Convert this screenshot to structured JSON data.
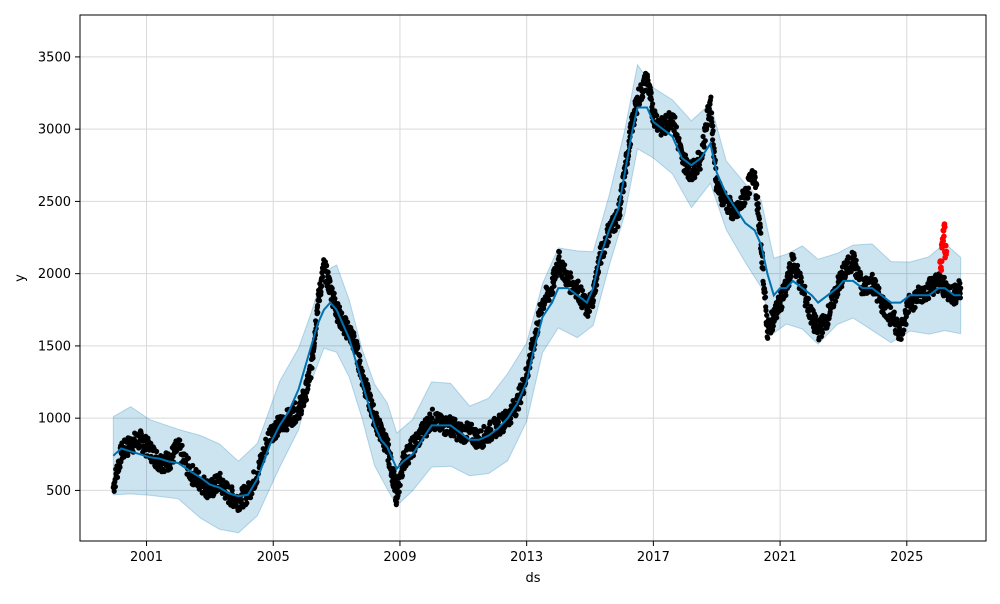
{
  "chart_data": {
    "type": "scatter",
    "title": "",
    "xlabel": "ds",
    "ylabel": "y",
    "xlim": [
      1998.9,
      2027.5
    ],
    "ylim": [
      150,
      3790
    ],
    "x_ticks": [
      2001,
      2005,
      2009,
      2013,
      2017,
      2021,
      2025
    ],
    "x_tick_labels": [
      "2001",
      "2005",
      "2009",
      "2013",
      "2017",
      "2021",
      "2025"
    ],
    "y_ticks": [
      500,
      1000,
      1500,
      2000,
      2500,
      3000,
      3500
    ],
    "y_tick_labels": [
      "500",
      "1000",
      "1500",
      "2000",
      "2500",
      "3000",
      "3500"
    ],
    "grid": true,
    "colors": {
      "observed": "#000000",
      "forecast_line": "#0072B2",
      "uncertainty_band": "#0072B2",
      "recent_points": "#ff0000",
      "grid": "#d9d9d9"
    },
    "series": [
      {
        "role": "observed",
        "x": [
          1999.95,
          2000.2,
          2000.5,
          2000.8,
          2001.1,
          2001.4,
          2001.7,
          2002.0,
          2002.4,
          2002.7,
          2003.0,
          2003.3,
          2003.6,
          2003.9,
          2004.2,
          2004.5,
          2004.9,
          2005.2,
          2005.5,
          2005.8,
          2006.0,
          2006.2,
          2006.4,
          2006.6,
          2006.8,
          2007.0,
          2007.2,
          2007.4,
          2007.6,
          2007.8,
          2008.0,
          2008.2,
          2008.4,
          2008.6,
          2008.8,
          2008.9,
          2009.1,
          2009.4,
          2009.7,
          2010.0,
          2010.3,
          2010.6,
          2010.9,
          2011.2,
          2011.5,
          2011.8,
          2012.1,
          2012.4,
          2012.7,
          2013.0,
          2013.2,
          2013.5,
          2013.8,
          2014.0,
          2014.3,
          2014.6,
          2014.9,
          2015.1,
          2015.3,
          2015.6,
          2015.9,
          2016.1,
          2016.3,
          2016.5,
          2016.8,
          2017.0,
          2017.3,
          2017.6,
          2017.9,
          2018.2,
          2018.5,
          2018.8,
          2019.0,
          2019.3,
          2019.6,
          2019.9,
          2020.2,
          2020.4,
          2020.6,
          2020.8,
          2021.0,
          2021.2,
          2021.4,
          2021.7,
          2022.0,
          2022.2,
          2022.5,
          2022.8,
          2023.0,
          2023.3,
          2023.6,
          2023.9,
          2024.2,
          2024.5,
          2024.8,
          2025.1,
          2025.4,
          2025.7,
          2026.0,
          2026.2,
          2026.5,
          2026.7
        ],
        "y": [
          520,
          760,
          820,
          850,
          780,
          700,
          700,
          800,
          620,
          560,
          500,
          560,
          470,
          430,
          480,
          620,
          900,
          950,
          1000,
          1060,
          1150,
          1350,
          1780,
          2050,
          1900,
          1750,
          1650,
          1600,
          1500,
          1300,
          1150,
          1000,
          900,
          800,
          580,
          450,
          700,
          800,
          900,
          1000,
          950,
          950,
          900,
          900,
          850,
          900,
          950,
          1000,
          1100,
          1300,
          1500,
          1800,
          1900,
          2100,
          1950,
          1900,
          1750,
          1850,
          2100,
          2300,
          2400,
          2700,
          3000,
          3200,
          3350,
          3100,
          3000,
          3100,
          2800,
          2700,
          2800,
          3200,
          2600,
          2500,
          2400,
          2550,
          2700,
          2200,
          1600,
          1700,
          1800,
          1900,
          2100,
          1900,
          1700,
          1600,
          1700,
          1900,
          2000,
          2100,
          1900,
          1950,
          1800,
          1700,
          1600,
          1800,
          1850,
          1900,
          1950,
          1900,
          1850,
          1900
        ]
      },
      {
        "role": "forecast",
        "x": [
          1999.95,
          2000.2,
          2000.5,
          2000.8,
          2001.1,
          2001.4,
          2001.7,
          2002.0,
          2002.4,
          2002.7,
          2003.0,
          2003.3,
          2003.6,
          2003.9,
          2004.2,
          2004.5,
          2004.9,
          2005.2,
          2005.5,
          2005.8,
          2006.0,
          2006.2,
          2006.4,
          2006.6,
          2006.8,
          2007.0,
          2007.2,
          2007.4,
          2007.6,
          2007.8,
          2008.0,
          2008.2,
          2008.4,
          2008.6,
          2008.8,
          2008.9,
          2009.1,
          2009.4,
          2009.7,
          2010.0,
          2010.3,
          2010.6,
          2010.9,
          2011.2,
          2011.5,
          2011.8,
          2012.1,
          2012.4,
          2012.7,
          2013.0,
          2013.2,
          2013.5,
          2013.8,
          2014.0,
          2014.3,
          2014.6,
          2014.9,
          2015.1,
          2015.3,
          2015.6,
          2015.9,
          2016.1,
          2016.3,
          2016.5,
          2016.8,
          2017.0,
          2017.3,
          2017.6,
          2017.9,
          2018.2,
          2018.5,
          2018.8,
          2019.0,
          2019.3,
          2019.6,
          2019.9,
          2020.2,
          2020.4,
          2020.6,
          2020.8,
          2021.0,
          2021.2,
          2021.4,
          2021.7,
          2022.0,
          2022.2,
          2022.5,
          2022.8,
          2023.0,
          2023.3,
          2023.6,
          2023.9,
          2024.2,
          2024.5,
          2024.8,
          2025.1,
          2025.4,
          2025.7,
          2026.0,
          2026.2,
          2026.5,
          2026.7
        ],
        "y": [
          740,
          790,
          770,
          750,
          730,
          720,
          700,
          690,
          630,
          590,
          540,
          520,
          480,
          460,
          470,
          580,
          820,
          950,
          1050,
          1200,
          1350,
          1500,
          1650,
          1750,
          1800,
          1750,
          1650,
          1550,
          1400,
          1250,
          1100,
          950,
          850,
          800,
          700,
          650,
          700,
          750,
          850,
          950,
          950,
          950,
          900,
          850,
          850,
          880,
          930,
          1000,
          1100,
          1250,
          1450,
          1700,
          1800,
          1900,
          1900,
          1850,
          1800,
          1900,
          2100,
          2300,
          2450,
          2700,
          2950,
          3150,
          3150,
          3050,
          3000,
          2950,
          2800,
          2750,
          2800,
          2900,
          2700,
          2550,
          2450,
          2350,
          2300,
          2200,
          2000,
          1850,
          1900,
          1900,
          1950,
          1900,
          1850,
          1800,
          1850,
          1900,
          1950,
          1950,
          1900,
          1900,
          1850,
          1800,
          1800,
          1850,
          1850,
          1850,
          1900,
          1900,
          1850,
          1850
        ]
      },
      {
        "role": "recent",
        "x": [
          2026.05,
          2026.1,
          2026.15,
          2026.2
        ],
        "y": [
          2080,
          2200,
          2300,
          2150
        ]
      }
    ],
    "uncertainty_band": {
      "x": [
        1999.95,
        2000.5,
        2001.1,
        2002.0,
        2002.7,
        2003.3,
        2003.9,
        2004.5,
        2005.2,
        2005.8,
        2006.2,
        2006.6,
        2007.0,
        2007.4,
        2007.8,
        2008.2,
        2008.6,
        2008.9,
        2009.4,
        2010.0,
        2010.6,
        2011.2,
        2011.8,
        2012.4,
        2013.0,
        2013.5,
        2014.0,
        2014.6,
        2015.1,
        2015.6,
        2016.1,
        2016.5,
        2017.0,
        2017.6,
        2018.2,
        2018.8,
        2019.3,
        2019.9,
        2020.4,
        2020.8,
        2021.2,
        2021.7,
        2022.2,
        2022.8,
        2023.3,
        2023.9,
        2024.5,
        2025.1,
        2025.7,
        2026.2,
        2026.7
      ],
      "yhat": [
        740,
        770,
        730,
        690,
        590,
        520,
        460,
        580,
        950,
        1200,
        1500,
        1750,
        1750,
        1550,
        1250,
        950,
        800,
        650,
        750,
        950,
        950,
        850,
        880,
        1000,
        1250,
        1700,
        1900,
        1850,
        1900,
        2300,
        2700,
        3150,
        3050,
        2950,
        2750,
        2900,
        2550,
        2350,
        2200,
        1850,
        1900,
        1900,
        1800,
        1900,
        1950,
        1900,
        1800,
        1850,
        1850,
        1900,
        1850
      ],
      "half_width": [
        270
      ]
    }
  }
}
